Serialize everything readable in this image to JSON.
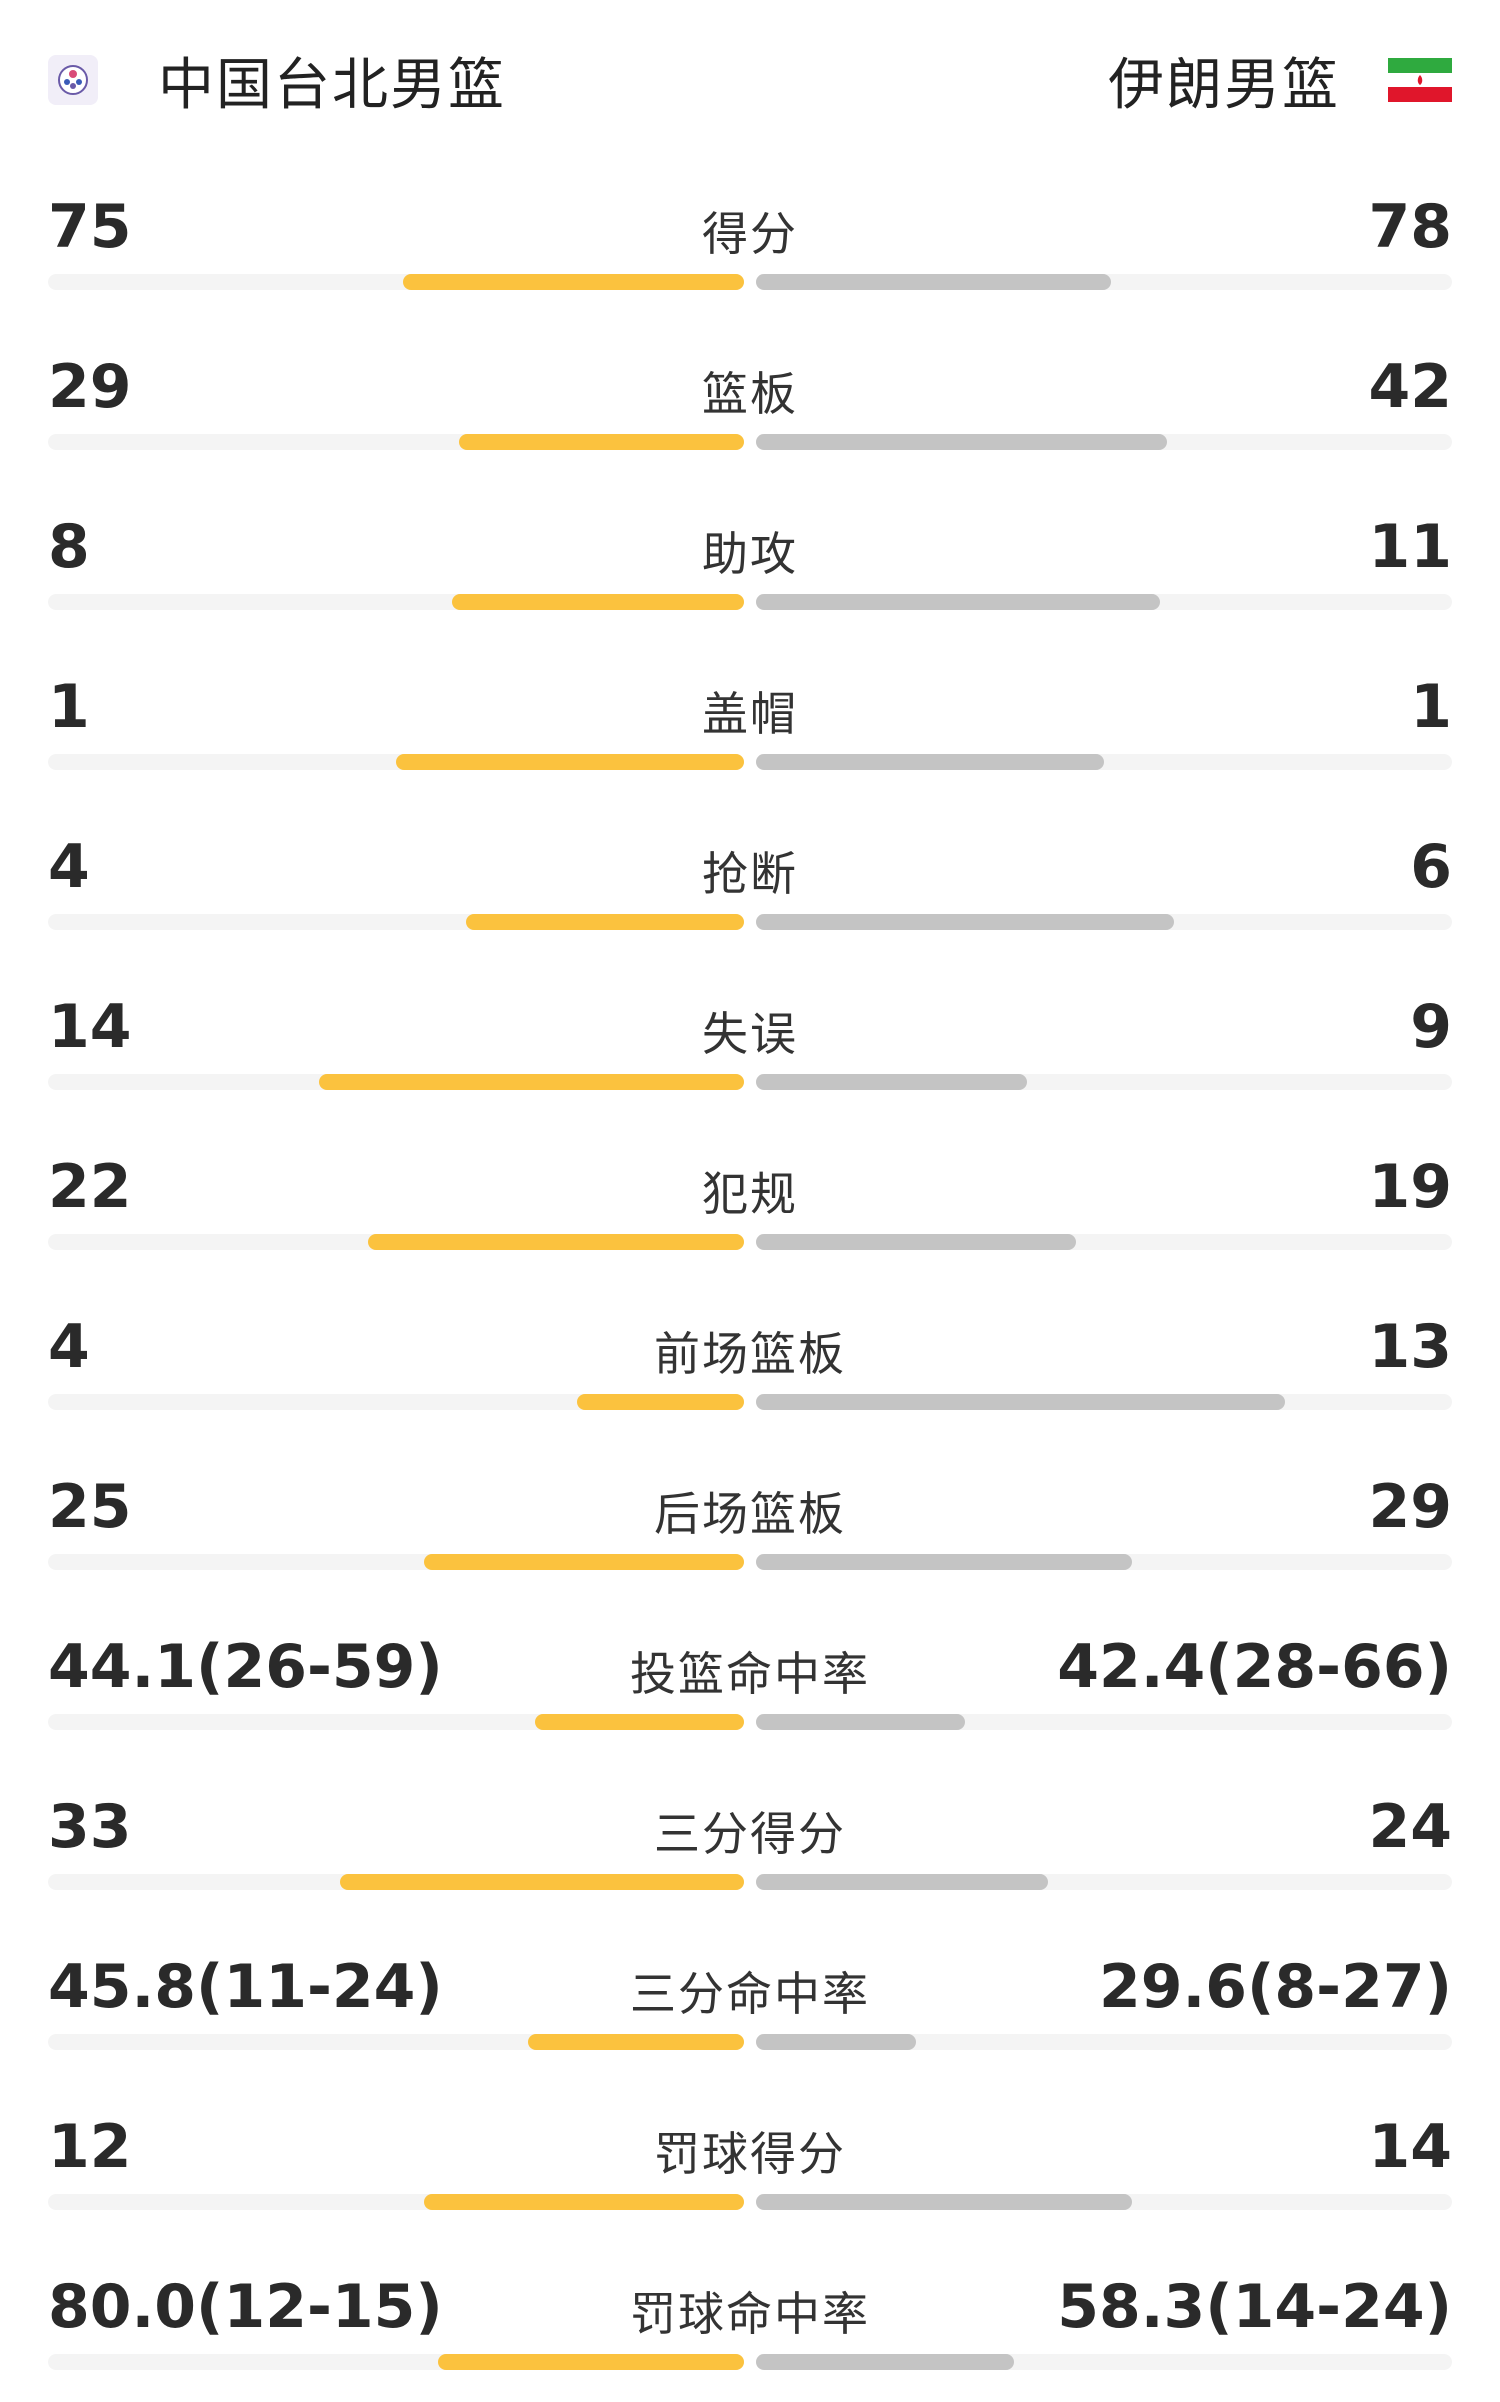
{
  "header": {
    "home_team": "中国台北男篮",
    "away_team": "伊朗男篮",
    "home_logo_icon": "chinese-taipei-logo-icon",
    "away_flag_icon": "iran-flag-icon"
  },
  "colors": {
    "home_bar": "#fbc23e",
    "away_bar": "#c4c4c4",
    "track": "#f4f4f4"
  },
  "stats": [
    {
      "label": "得分",
      "home": "75",
      "away": "78",
      "home_share": 0.49,
      "away_share": 0.51
    },
    {
      "label": "篮板",
      "home": "29",
      "away": "42",
      "home_share": 0.41,
      "away_share": 0.59
    },
    {
      "label": "助攻",
      "home": "8",
      "away": "11",
      "home_share": 0.42,
      "away_share": 0.58
    },
    {
      "label": "盖帽",
      "home": "1",
      "away": "1",
      "home_share": 0.5,
      "away_share": 0.5
    },
    {
      "label": "抢断",
      "home": "4",
      "away": "6",
      "home_share": 0.4,
      "away_share": 0.6
    },
    {
      "label": "失误",
      "home": "14",
      "away": "9",
      "home_share": 0.61,
      "away_share": 0.39
    },
    {
      "label": "犯规",
      "home": "22",
      "away": "19",
      "home_share": 0.54,
      "away_share": 0.46
    },
    {
      "label": "前场篮板",
      "home": "4",
      "away": "13",
      "home_share": 0.24,
      "away_share": 0.76
    },
    {
      "label": "后场篮板",
      "home": "25",
      "away": "29",
      "home_share": 0.46,
      "away_share": 0.54
    },
    {
      "label": "投篮命中率",
      "home": "44.1(26-59)",
      "away": "42.4(28-66)",
      "home_share": 0.3,
      "away_share": 0.3
    },
    {
      "label": "三分得分",
      "home": "33",
      "away": "24",
      "home_share": 0.58,
      "away_share": 0.42
    },
    {
      "label": "三分命中率",
      "home": "45.8(11-24)",
      "away": "29.6(8-27)",
      "home_share": 0.31,
      "away_share": 0.23
    },
    {
      "label": "罚球得分",
      "home": "12",
      "away": "14",
      "home_share": 0.46,
      "away_share": 0.54
    },
    {
      "label": "罚球命中率",
      "home": "80.0(12-15)",
      "away": "58.3(14-24)",
      "home_share": 0.44,
      "away_share": 0.37
    }
  ]
}
